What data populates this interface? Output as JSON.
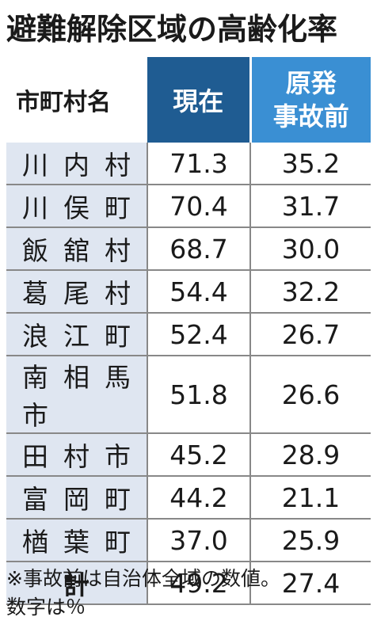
{
  "title": "避難解除区域の高齢化率",
  "headers": {
    "name": "市町村名",
    "current": "現在",
    "pre_line1": "原発",
    "pre_line2": "事故前"
  },
  "rows": [
    {
      "name": "川内村",
      "current": "71.3",
      "pre": "35.2"
    },
    {
      "name": "川俣町",
      "current": "70.4",
      "pre": "31.7"
    },
    {
      "name": "飯舘村",
      "current": "68.7",
      "pre": "30.0"
    },
    {
      "name": "葛尾村",
      "current": "54.4",
      "pre": "32.2"
    },
    {
      "name": "浪江町",
      "current": "52.4",
      "pre": "26.7"
    },
    {
      "name": "南相馬市",
      "current": "51.8",
      "pre": "26.6"
    },
    {
      "name": "田村市",
      "current": "45.2",
      "pre": "28.9"
    },
    {
      "name": "富岡町",
      "current": "44.2",
      "pre": "21.1"
    },
    {
      "name": "楢葉町",
      "current": "37.0",
      "pre": "25.9"
    }
  ],
  "total": {
    "name": "計",
    "current": "49.2",
    "pre": "27.4"
  },
  "note_line1": "※事故前は自治体全域の数値。",
  "note_line2": "数字は％",
  "colors": {
    "header_current": "#1f5c92",
    "header_pre": "#3a8fd3",
    "name_cell_bg": "#dfe6f1"
  },
  "chart_data": {
    "type": "table",
    "title": "避難解除区域の高齢化率",
    "columns": [
      "市町村名",
      "現在",
      "原発事故前"
    ],
    "categories": [
      "川内村",
      "川俣町",
      "飯舘村",
      "葛尾村",
      "浪江町",
      "南相馬市",
      "田村市",
      "富岡町",
      "楢葉町",
      "計"
    ],
    "series": [
      {
        "name": "現在",
        "values": [
          71.3,
          70.4,
          68.7,
          54.4,
          52.4,
          51.8,
          45.2,
          44.2,
          37.0,
          49.2
        ]
      },
      {
        "name": "原発事故前",
        "values": [
          35.2,
          31.7,
          30.0,
          32.2,
          26.7,
          26.6,
          28.9,
          21.1,
          25.9,
          27.4
        ]
      }
    ]
  }
}
